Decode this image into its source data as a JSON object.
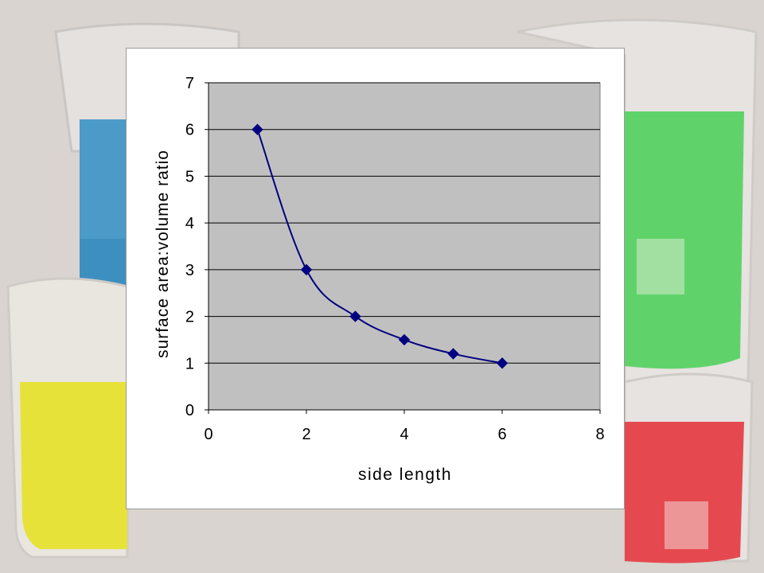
{
  "chart_data": {
    "type": "scatter",
    "title": "",
    "xlabel": "side length",
    "ylabel": "surface area:volume ratio",
    "xlim": [
      0,
      8
    ],
    "ylim": [
      0,
      7
    ],
    "x_ticks": [
      0,
      2,
      4,
      6,
      8
    ],
    "y_ticks": [
      0,
      1,
      2,
      3,
      4,
      5,
      6,
      7
    ],
    "grid": "horizontal",
    "legend": "none",
    "line": "smoothed",
    "marker": "diamond",
    "series": [
      {
        "x": [
          1,
          2,
          3,
          4,
          5,
          6
        ],
        "values": [
          6,
          3,
          2,
          1.5,
          1.2,
          1
        ]
      }
    ]
  },
  "colors": {
    "plot_background": "#c0c0c0",
    "series": "#000080",
    "gridline": "#000000",
    "chart_background": "#ffffff"
  }
}
